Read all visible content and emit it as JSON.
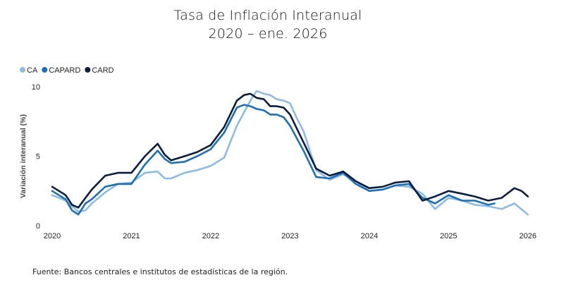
{
  "chart_data": {
    "type": "line",
    "title": "Tasa de Inflación Interanual",
    "subtitle": "2020 – ene. 2026",
    "ylabel": "Variación interanual (%)",
    "xlabel": "",
    "ylim": [
      0,
      10
    ],
    "xlim": [
      2020,
      2026.1
    ],
    "yticks": [
      0,
      5,
      10
    ],
    "xticks": [
      2020,
      2021,
      2022,
      2023,
      2024,
      2025,
      2026
    ],
    "legend_position": "top-left",
    "series": [
      {
        "name": "CA",
        "color": "#8fbbe3",
        "x": [
          2020.0,
          2020.17,
          2020.33,
          2020.42,
          2020.5,
          2020.67,
          2020.83,
          2021.0,
          2021.17,
          2021.33,
          2021.42,
          2021.5,
          2021.67,
          2021.83,
          2022.0,
          2022.17,
          2022.33,
          2022.5,
          2022.58,
          2022.67,
          2022.75,
          2022.83,
          2022.92,
          2023.0,
          2023.08,
          2023.17,
          2023.33,
          2023.5,
          2023.67,
          2023.83,
          2024.0,
          2024.17,
          2024.33,
          2024.5,
          2024.67,
          2024.83,
          2025.0,
          2025.17,
          2025.33,
          2025.5,
          2025.67,
          2025.83,
          2026.0
        ],
        "values": [
          2.2,
          1.8,
          1.0,
          1.1,
          1.6,
          2.4,
          3.0,
          3.1,
          3.8,
          3.9,
          3.4,
          3.4,
          3.8,
          4.0,
          4.3,
          4.9,
          7.2,
          9.0,
          9.7,
          9.5,
          9.4,
          9.1,
          9.0,
          8.8,
          7.8,
          6.8,
          4.0,
          3.3,
          3.7,
          3.2,
          2.5,
          2.6,
          2.9,
          2.8,
          2.3,
          1.2,
          2.0,
          1.8,
          1.5,
          1.4,
          1.2,
          1.6,
          0.8
        ]
      },
      {
        "name": "CAPARD",
        "color": "#1f6fb5",
        "x": [
          2020.0,
          2020.17,
          2020.25,
          2020.33,
          2020.42,
          2020.5,
          2020.67,
          2020.83,
          2021.0,
          2021.17,
          2021.33,
          2021.42,
          2021.5,
          2021.67,
          2021.83,
          2022.0,
          2022.17,
          2022.33,
          2022.42,
          2022.5,
          2022.58,
          2022.67,
          2022.75,
          2022.83,
          2022.92,
          2023.0,
          2023.17,
          2023.33,
          2023.5,
          2023.67,
          2023.83,
          2024.0,
          2024.17,
          2024.33,
          2024.5,
          2024.67,
          2024.83,
          2025.0,
          2025.17,
          2025.33,
          2025.5,
          2025.58
        ],
        "values": [
          2.5,
          1.9,
          1.1,
          0.8,
          1.6,
          1.9,
          2.8,
          3.0,
          3.0,
          4.4,
          5.4,
          4.8,
          4.5,
          4.6,
          5.0,
          5.5,
          6.7,
          8.5,
          8.7,
          8.6,
          8.4,
          8.3,
          8.0,
          8.0,
          7.8,
          7.2,
          5.4,
          3.5,
          3.4,
          3.8,
          3.0,
          2.5,
          2.6,
          2.9,
          3.0,
          2.0,
          1.6,
          2.2,
          1.8,
          1.8,
          1.5,
          1.6
        ]
      },
      {
        "name": "CARD",
        "color": "#0d1e3d",
        "x": [
          2020.0,
          2020.17,
          2020.25,
          2020.33,
          2020.42,
          2020.5,
          2020.67,
          2020.83,
          2021.0,
          2021.17,
          2021.33,
          2021.42,
          2021.5,
          2021.67,
          2021.83,
          2022.0,
          2022.17,
          2022.33,
          2022.42,
          2022.5,
          2022.58,
          2022.67,
          2022.75,
          2022.83,
          2022.92,
          2023.0,
          2023.17,
          2023.33,
          2023.5,
          2023.67,
          2023.83,
          2024.0,
          2024.17,
          2024.33,
          2024.5,
          2024.67,
          2024.83,
          2025.0,
          2025.17,
          2025.33,
          2025.5,
          2025.67,
          2025.83,
          2025.92,
          2026.0
        ],
        "values": [
          2.8,
          2.2,
          1.5,
          1.3,
          2.0,
          2.6,
          3.6,
          3.8,
          3.8,
          5.0,
          5.9,
          5.1,
          4.7,
          5.0,
          5.3,
          5.8,
          7.1,
          9.0,
          9.4,
          9.5,
          9.2,
          9.1,
          8.6,
          8.6,
          8.5,
          8.0,
          6.0,
          4.1,
          3.6,
          3.9,
          3.2,
          2.7,
          2.8,
          3.1,
          3.2,
          1.8,
          2.1,
          2.5,
          2.3,
          2.1,
          1.8,
          2.0,
          2.7,
          2.5,
          2.1
        ]
      }
    ],
    "source": "Fuente: Bancos centrales e institutos de estadísticas de la región."
  }
}
